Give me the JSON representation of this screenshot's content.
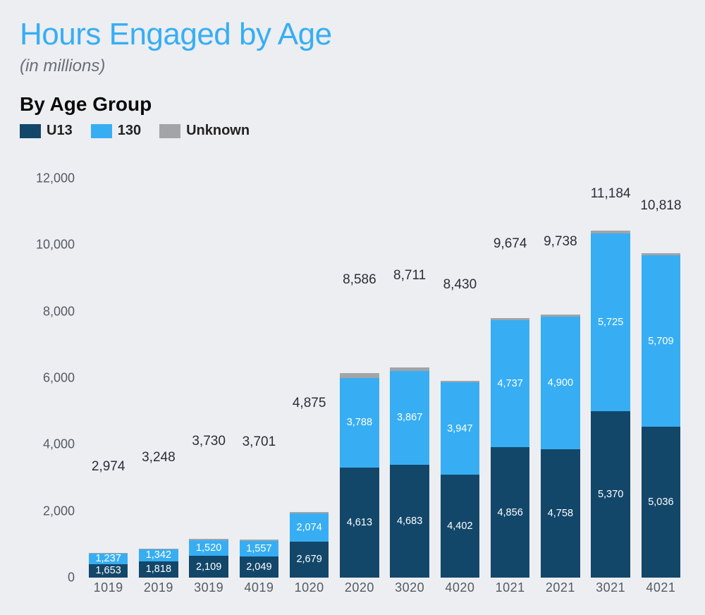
{
  "title": "Hours Engaged by Age",
  "title_color": "#37aef3",
  "subtitle": "(in millions)",
  "subheader": "By Age Group",
  "legend": [
    {
      "label": "U13",
      "color": "#13476a"
    },
    {
      "label": "130",
      "color": "#37aef3"
    },
    {
      "label": "Unknown",
      "color": "#a2a4a7"
    }
  ],
  "chart": {
    "type": "stacked-bar",
    "background_color": "#eceef2",
    "ylim": [
      0,
      12000
    ],
    "ytick_step": 2000,
    "yticks": [
      "0",
      "2,000",
      "4,000",
      "6,000",
      "8,000",
      "10,000",
      "12,000"
    ],
    "axis_label_color": "#555b63",
    "axis_label_fontsize": 18,
    "total_label_color": "#2a2e34",
    "total_label_fontsize": 19,
    "segment_label_fontsize": 14.5,
    "bar_width_ratio": 0.78,
    "categories": [
      "1019",
      "2019",
      "3019",
      "4019",
      "1020",
      "2020",
      "3020",
      "4020",
      "1021",
      "2021",
      "3021",
      "4021"
    ],
    "series": [
      {
        "key": "u13",
        "color": "#13476a",
        "text_color": "#ffffff"
      },
      {
        "key": "o13",
        "color": "#37aef3",
        "text_color": "#ffffff"
      },
      {
        "key": "unknown",
        "color": "#a2a4a7",
        "text_color": "#ffffff"
      }
    ],
    "data": [
      {
        "total": "2,974",
        "u13": {
          "v": 1653,
          "l": "1,653"
        },
        "o13": {
          "v": 1237,
          "l": "1,237"
        },
        "unknown": {
          "v": 84,
          "l": ""
        }
      },
      {
        "total": "3,248",
        "u13": {
          "v": 1818,
          "l": "1,818"
        },
        "o13": {
          "v": 1342,
          "l": "1,342"
        },
        "unknown": {
          "v": 88,
          "l": ""
        }
      },
      {
        "total": "3,730",
        "u13": {
          "v": 2109,
          "l": "2,109"
        },
        "o13": {
          "v": 1520,
          "l": "1,520"
        },
        "unknown": {
          "v": 101,
          "l": ""
        }
      },
      {
        "total": "3,701",
        "u13": {
          "v": 2049,
          "l": "2,049"
        },
        "o13": {
          "v": 1557,
          "l": "1,557"
        },
        "unknown": {
          "v": 95,
          "l": ""
        }
      },
      {
        "total": "4,875",
        "u13": {
          "v": 2679,
          "l": "2,679"
        },
        "o13": {
          "v": 2074,
          "l": "2,074"
        },
        "unknown": {
          "v": 122,
          "l": ""
        }
      },
      {
        "total": "8,586",
        "u13": {
          "v": 4613,
          "l": "4,613"
        },
        "o13": {
          "v": 3788,
          "l": "3,788"
        },
        "unknown": {
          "v": 185,
          "l": ""
        }
      },
      {
        "total": "8,711",
        "u13": {
          "v": 4683,
          "l": "4,683"
        },
        "o13": {
          "v": 3867,
          "l": "3,867"
        },
        "unknown": {
          "v": 161,
          "l": ""
        }
      },
      {
        "total": "8,430",
        "u13": {
          "v": 4402,
          "l": "4,402"
        },
        "o13": {
          "v": 3947,
          "l": "3,947"
        },
        "unknown": {
          "v": 81,
          "l": ""
        }
      },
      {
        "total": "9,674",
        "u13": {
          "v": 4856,
          "l": "4,856"
        },
        "o13": {
          "v": 4737,
          "l": "4,737"
        },
        "unknown": {
          "v": 81,
          "l": ""
        }
      },
      {
        "total": "9,738",
        "u13": {
          "v": 4758,
          "l": "4,758"
        },
        "o13": {
          "v": 4900,
          "l": "4,900"
        },
        "unknown": {
          "v": 80,
          "l": ""
        }
      },
      {
        "total": "11,184",
        "u13": {
          "v": 5370,
          "l": "5,370"
        },
        "o13": {
          "v": 5725,
          "l": "5,725"
        },
        "unknown": {
          "v": 89,
          "l": ""
        }
      },
      {
        "total": "10,818",
        "u13": {
          "v": 5036,
          "l": "5,036"
        },
        "o13": {
          "v": 5709,
          "l": "5,709"
        },
        "unknown": {
          "v": 73,
          "l": ""
        }
      }
    ]
  }
}
